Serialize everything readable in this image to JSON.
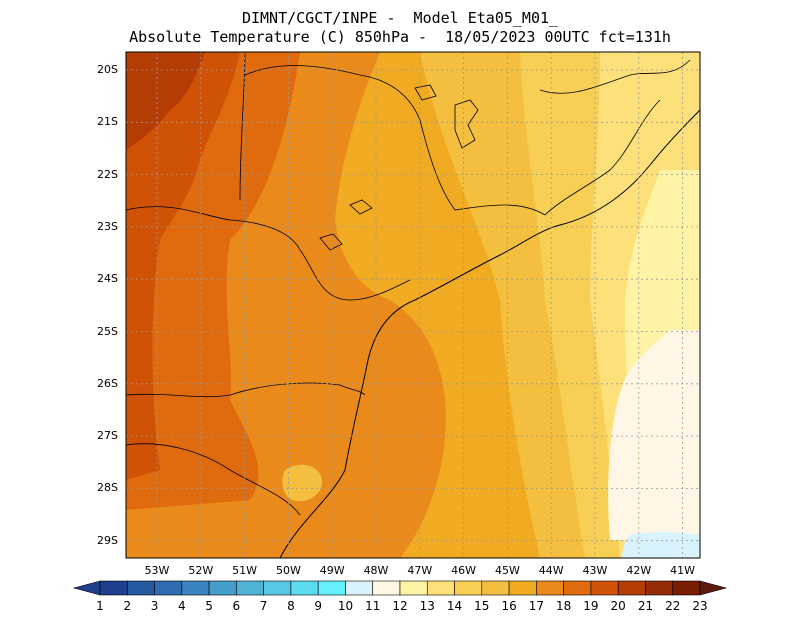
{
  "title": {
    "line1": "DIMNT/CGCT/INPE -  Model Eta05_M01_",
    "line2": "Absolute Temperature (C) 850hPa -  18/05/2023 00UTC fct=131h"
  },
  "latitude_labels": [
    "20S",
    "21S",
    "22S",
    "23S",
    "24S",
    "25S",
    "26S",
    "27S",
    "28S",
    "29S"
  ],
  "longitude_labels": [
    "53W",
    "52W",
    "51W",
    "50W",
    "49W",
    "48W",
    "47W",
    "46W",
    "45W",
    "44W",
    "43W",
    "42W",
    "41W"
  ],
  "colorbar": {
    "labels": [
      "1",
      "2",
      "3",
      "4",
      "5",
      "6",
      "7",
      "8",
      "9",
      "10",
      "11",
      "12",
      "13",
      "14",
      "15",
      "16",
      "17",
      "18",
      "19",
      "20",
      "21",
      "22",
      "23"
    ],
    "colors": [
      "#1e3f8c",
      "#2559a0",
      "#2f6db0",
      "#3a85bf",
      "#459dcc",
      "#4fb3d8",
      "#57c8e3",
      "#5ddbee",
      "#63f0fb",
      "#d8f3fb",
      "#fff6e6",
      "#fff3a6",
      "#fde07a",
      "#f8cf55",
      "#f4be3e",
      "#f0ab22",
      "#ea8a1a",
      "#e06a0e",
      "#d05206",
      "#b43c05",
      "#952b05",
      "#791d03"
    ],
    "low_arrow_color": "#1e3f8c",
    "high_arrow_color": "#5a1a0e"
  }
}
